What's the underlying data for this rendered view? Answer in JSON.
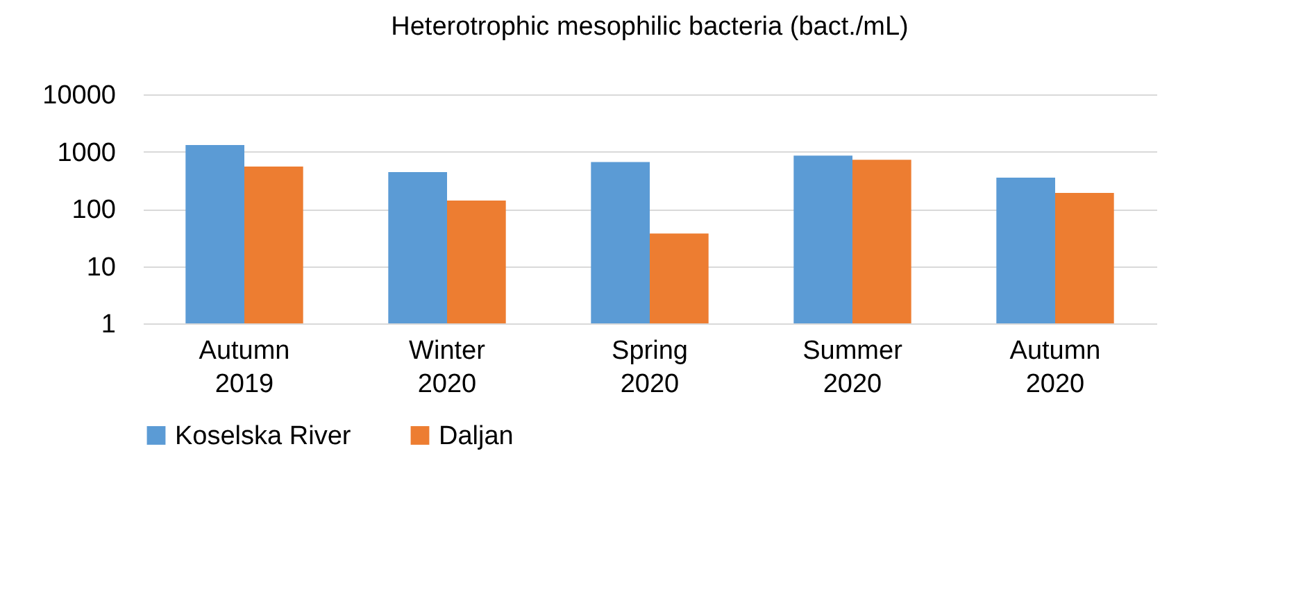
{
  "chart_data": {
    "type": "bar",
    "title": "Heterotrophic mesophilic bacteria (bact./mL)",
    "categories": [
      "Autumn 2019",
      "Winter 2020",
      "Spring 2020",
      "Summer 2020",
      "Autumn 2020"
    ],
    "series": [
      {
        "name": "Koselska River",
        "color": "#5b9bd5",
        "values": [
          1300,
          440,
          660,
          850,
          350
        ]
      },
      {
        "name": "Daljan",
        "color": "#ed7d31",
        "values": [
          550,
          140,
          37,
          720,
          190
        ]
      }
    ],
    "log": "y",
    "ylim": [
      1,
      10000
    ],
    "yticks": [
      1,
      10,
      100,
      1000,
      10000
    ],
    "grid": "y",
    "legend": "bottom"
  }
}
